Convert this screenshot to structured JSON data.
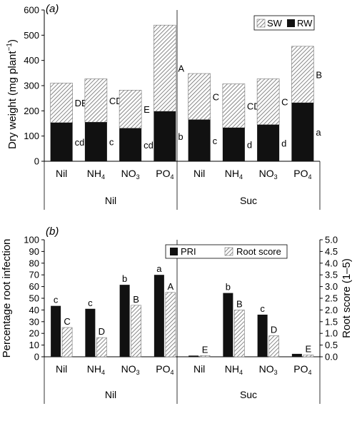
{
  "chart_data": [
    {
      "type": "bar",
      "stacked": true,
      "panel_label": "(a)",
      "ylabel": "Dry weight (mg plant",
      "ylabel_sup": "−1",
      "ylabel_close": ")",
      "ylim": [
        0,
        600
      ],
      "yticks": [
        "0",
        "100",
        "200",
        "300",
        "400",
        "500",
        "600"
      ],
      "categories": [
        "Nil",
        "NH4",
        "NO3",
        "PO4",
        "Nil",
        "NH4",
        "NO3",
        "PO4"
      ],
      "category_labels": [
        {
          "base": "Nil",
          "sub": ""
        },
        {
          "base": "NH",
          "sub": "4"
        },
        {
          "base": "NO",
          "sub": "3"
        },
        {
          "base": "PO",
          "sub": "4"
        },
        {
          "base": "Nil",
          "sub": ""
        },
        {
          "base": "NH",
          "sub": "4"
        },
        {
          "base": "NO",
          "sub": "3"
        },
        {
          "base": "PO",
          "sub": "4"
        }
      ],
      "groups": [
        "Nil",
        "Suc"
      ],
      "legend": [
        "SW",
        "RW"
      ],
      "series": [
        {
          "name": "RW",
          "values": [
            153,
            155,
            131,
            198,
            165,
            133,
            145,
            232
          ]
        },
        {
          "name": "SW",
          "values": [
            157,
            172,
            151,
            342,
            183,
            174,
            182,
            224
          ]
        }
      ],
      "totals": [
        310,
        327,
        282,
        540,
        348,
        307,
        327,
        456
      ],
      "rw_labels": [
        "cd",
        "c",
        "cd",
        "b",
        "c",
        "d",
        "d",
        "a"
      ],
      "sw_labels": [
        "DE",
        "CD",
        "E",
        "A",
        "C",
        "CD",
        "C",
        "B"
      ],
      "legend_position": "top-right",
      "grid": false
    },
    {
      "type": "bar",
      "panel_label": "(b)",
      "ylabel": "Percentage root infection",
      "ylabel_right": "Root score (1–5)",
      "ylim": [
        0,
        100
      ],
      "ylim_right": [
        0,
        5
      ],
      "yticks": [
        "0",
        "10",
        "20",
        "30",
        "40",
        "50",
        "60",
        "70",
        "80",
        "90",
        "100"
      ],
      "yticks_right": [
        "0.0",
        "0.5",
        "1.0",
        "1.5",
        "2.0",
        "2.5",
        "3.0",
        "3.5",
        "4.0",
        "4.5",
        "5.0"
      ],
      "categories": [
        "Nil",
        "NH4",
        "NO3",
        "PO4",
        "Nil",
        "NH4",
        "NO3",
        "PO4"
      ],
      "category_labels": [
        {
          "base": "Nil",
          "sub": ""
        },
        {
          "base": "NH",
          "sub": "4"
        },
        {
          "base": "NO",
          "sub": "3"
        },
        {
          "base": "PO",
          "sub": "4"
        },
        {
          "base": "Nil",
          "sub": ""
        },
        {
          "base": "NH",
          "sub": "4"
        },
        {
          "base": "NO",
          "sub": "3"
        },
        {
          "base": "PO",
          "sub": "4"
        }
      ],
      "groups": [
        "Nil",
        "Suc"
      ],
      "legend": [
        "PRI",
        "Root score"
      ],
      "series": [
        {
          "name": "PRI",
          "values": [
            43.5,
            41,
            61.5,
            70,
            1,
            54.5,
            36,
            2.5
          ]
        },
        {
          "name": "Root score",
          "values": [
            1.25,
            0.82,
            2.2,
            2.75,
            0.05,
            2.0,
            0.9,
            0.08
          ]
        }
      ],
      "pri_labels": [
        "c",
        "c",
        "b",
        "a",
        "",
        "b",
        "c",
        ""
      ],
      "score_labels": [
        "C",
        "D",
        "B",
        "A",
        "E",
        "B",
        "D",
        "E"
      ],
      "legend_position": "top-right",
      "grid": false
    }
  ]
}
